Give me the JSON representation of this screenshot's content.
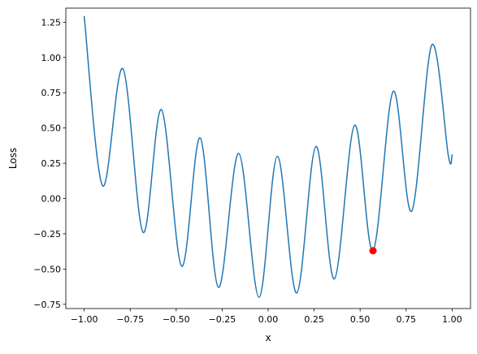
{
  "chart_data": {
    "type": "line",
    "title": "",
    "xlabel": "x",
    "ylabel": "Loss",
    "xlim": [
      -1.1,
      1.1
    ],
    "ylim": [
      -0.78,
      1.35
    ],
    "grid": false,
    "x_ticks": [
      -1.0,
      -0.75,
      -0.5,
      -0.25,
      0.0,
      0.25,
      0.5,
      0.75,
      1.0
    ],
    "x_tick_labels": [
      "−1.00",
      "−0.75",
      "−0.50",
      "−0.25",
      "0.00",
      "0.25",
      "0.50",
      "0.75",
      "1.00"
    ],
    "y_ticks": [
      -0.75,
      -0.5,
      -0.25,
      0.0,
      0.25,
      0.5,
      0.75,
      1.0,
      1.25
    ],
    "y_tick_labels": [
      "−0.75",
      "−0.50",
      "−0.25",
      "0.00",
      "0.25",
      "0.50",
      "0.75",
      "1.00",
      "1.25"
    ],
    "series": [
      {
        "color": "#1f77b4",
        "x": [
          -1.0,
          -0.9,
          -0.79,
          -0.68,
          -0.58,
          -0.47,
          -0.37,
          -0.27,
          -0.16,
          -0.05,
          0.05,
          0.155,
          0.26,
          0.36,
          0.47,
          0.57,
          0.68,
          0.78,
          0.89,
          0.98,
          1.0
        ],
        "y": [
          1.29,
          0.09,
          0.92,
          -0.24,
          0.63,
          -0.48,
          0.43,
          -0.63,
          0.32,
          -0.7,
          0.3,
          -0.67,
          0.37,
          -0.57,
          0.52,
          -0.37,
          0.76,
          -0.09,
          1.09,
          0.3,
          0.31
        ]
      }
    ],
    "highlight_point": {
      "x": 0.57,
      "y": -0.37,
      "color": "#ff0000"
    }
  }
}
